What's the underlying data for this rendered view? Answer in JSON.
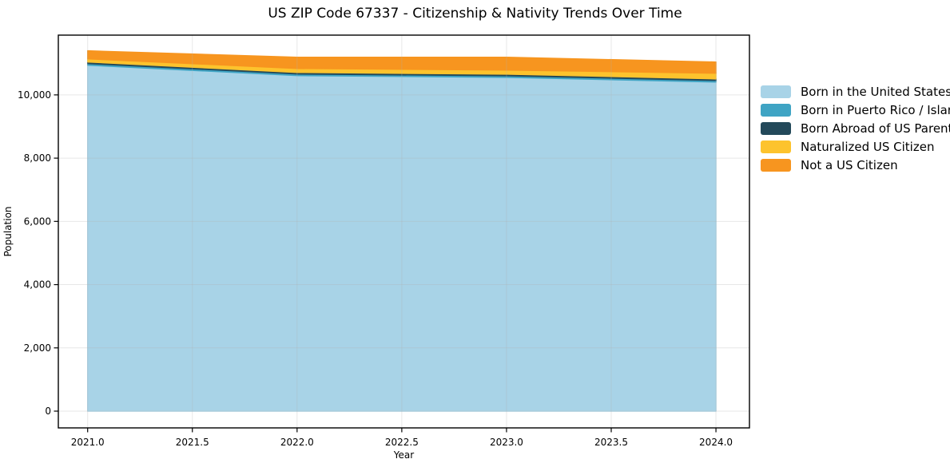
{
  "title": "US ZIP Code 67337 - Citizenship & Nativity Trends Over Time",
  "chart_data": {
    "type": "area",
    "stacked": true,
    "title": "US ZIP Code 67337 - Citizenship & Nativity Trends Over Time",
    "xlabel": "Year",
    "ylabel": "Population",
    "x": [
      2021,
      2022,
      2023,
      2024
    ],
    "series": [
      {
        "name": "Born in the United States",
        "color": "#a8d3e7",
        "values": [
          10940,
          10610,
          10555,
          10405
        ]
      },
      {
        "name": "Born in Puerto Rico / Islands",
        "color": "#3fa4c4",
        "values": [
          50,
          50,
          50,
          50
        ]
      },
      {
        "name": "Born Abroad of US Parent(s)",
        "color": "#23495a",
        "values": [
          50,
          50,
          50,
          50
        ]
      },
      {
        "name": "Naturalized US Citizen",
        "color": "#fdc32d",
        "values": [
          100,
          125,
          130,
          180
        ]
      },
      {
        "name": "Not a US Citizen",
        "color": "#f7951f",
        "values": [
          255,
          355,
          405,
          355
        ]
      }
    ],
    "xlim": [
      2020.86,
      2024.16
    ],
    "ylim": [
      -530,
      11890
    ],
    "x_ticks": [
      2021.0,
      2021.5,
      2022.0,
      2022.5,
      2023.0,
      2023.5,
      2024.0
    ],
    "x_tick_labels": [
      "2021.0",
      "2021.5",
      "2022.0",
      "2022.5",
      "2023.0",
      "2023.5",
      "2024.0"
    ],
    "y_ticks": [
      0,
      2000,
      4000,
      6000,
      8000,
      10000
    ],
    "y_tick_labels": [
      "0",
      "2,000",
      "4,000",
      "6,000",
      "8,000",
      "10,000"
    ],
    "grid": true,
    "grid_color": "#b0b0b0",
    "axis_color": "#000000",
    "legend_position": "right"
  }
}
